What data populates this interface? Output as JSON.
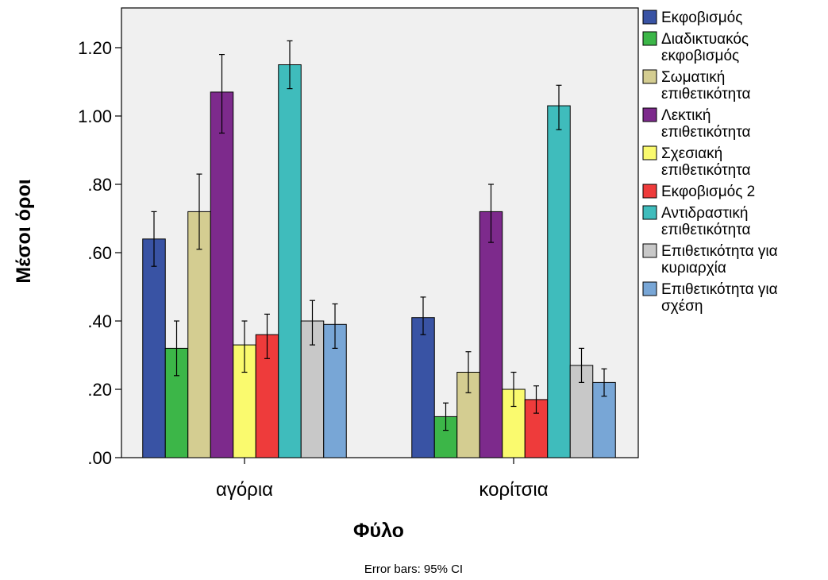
{
  "chart_data": {
    "type": "bar",
    "xlabel": "Φύλο",
    "ylabel": "Μέσοι όροι",
    "footnote": "Error bars: 95% CI",
    "ylim": [
      0,
      1.3
    ],
    "yticks": [
      ".00",
      ".20",
      ".40",
      ".60",
      ".80",
      "1.00",
      "1.20"
    ],
    "ytick_values": [
      0,
      0.2,
      0.4,
      0.6,
      0.8,
      1.0,
      1.2
    ],
    "categories": [
      "αγόρια",
      "κορίτσια"
    ],
    "grid": false,
    "legend_position": "right",
    "series": [
      {
        "name": "Εκφοβισμός",
        "label_lines": [
          "Εκφοβισμός"
        ],
        "color": "#3953a4",
        "values": [
          0.64,
          0.41
        ],
        "ci_low": [
          0.56,
          0.36
        ],
        "ci_high": [
          0.72,
          0.47
        ]
      },
      {
        "name": "Διαδικτυακός εκφοβισμός",
        "label_lines": [
          "Διαδικτυακός",
          "εκφοβισμός"
        ],
        "color": "#3cb648",
        "values": [
          0.32,
          0.12
        ],
        "ci_low": [
          0.24,
          0.08
        ],
        "ci_high": [
          0.4,
          0.16
        ]
      },
      {
        "name": "Σωματική επιθετικότητα",
        "label_lines": [
          "Σωματική",
          "επιθετικότητα"
        ],
        "color": "#d4cd91",
        "values": [
          0.72,
          0.25
        ],
        "ci_low": [
          0.61,
          0.19
        ],
        "ci_high": [
          0.83,
          0.31
        ]
      },
      {
        "name": "Λεκτική επιθετικότητα",
        "label_lines": [
          "Λεκτική",
          "επιθετικότητα"
        ],
        "color": "#7d2a8c",
        "values": [
          1.07,
          0.72
        ],
        "ci_low": [
          0.95,
          0.63
        ],
        "ci_high": [
          1.18,
          0.8
        ]
      },
      {
        "name": "Σχεσιακή επιθετικότητα",
        "label_lines": [
          "Σχεσιακή",
          "επιθετικότητα"
        ],
        "color": "#fafa6e",
        "values": [
          0.33,
          0.2
        ],
        "ci_low": [
          0.25,
          0.15
        ],
        "ci_high": [
          0.4,
          0.25
        ]
      },
      {
        "name": "Εκφοβισμός 2",
        "label_lines": [
          "Εκφοβισμός 2"
        ],
        "color": "#ee3b3b",
        "values": [
          0.36,
          0.17
        ],
        "ci_low": [
          0.29,
          0.13
        ],
        "ci_high": [
          0.42,
          0.21
        ]
      },
      {
        "name": "Αντιδραστική επιθετικότητα",
        "label_lines": [
          "Αντιδραστική",
          "επιθετικότητα"
        ],
        "color": "#3fbcbc",
        "values": [
          1.15,
          1.03
        ],
        "ci_low": [
          1.08,
          0.96
        ],
        "ci_high": [
          1.22,
          1.09
        ]
      },
      {
        "name": "Επιθετικότητα για κυριαρχία",
        "label_lines": [
          "Επιθετικότητα για",
          "κυριαρχία"
        ],
        "color": "#c8c8c8",
        "values": [
          0.4,
          0.27
        ],
        "ci_low": [
          0.33,
          0.22
        ],
        "ci_high": [
          0.46,
          0.32
        ]
      },
      {
        "name": "Επιθετικότητα για σχέση",
        "label_lines": [
          "Επιθετικότητα για",
          "σχέση"
        ],
        "color": "#78a6d6",
        "values": [
          0.39,
          0.22
        ],
        "ci_low": [
          0.32,
          0.18
        ],
        "ci_high": [
          0.45,
          0.26
        ]
      }
    ]
  }
}
